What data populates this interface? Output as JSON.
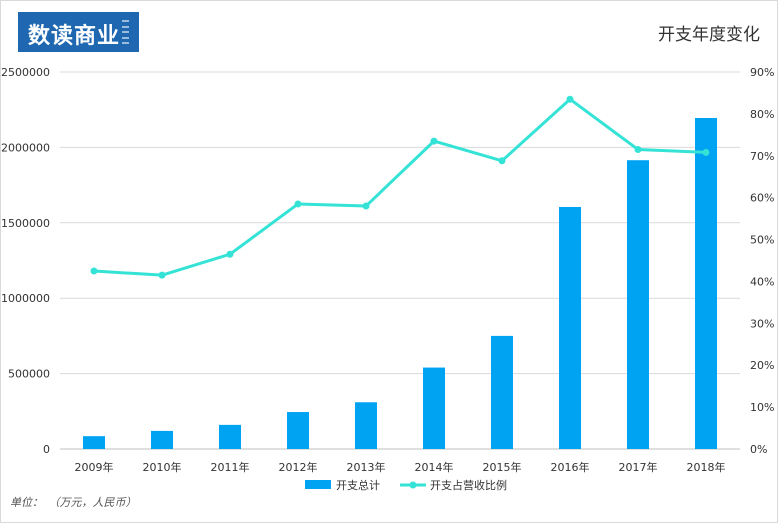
{
  "logo": {
    "text": "数读商业"
  },
  "title": "开支年度变化",
  "unit_note": "单位：　（万元，人民币）",
  "colors": {
    "bar": "#00a2f2",
    "line": "#34e3d6",
    "grid": "#d9d9d9",
    "text": "#333333"
  },
  "chart_data": {
    "type": "bar",
    "title": "开支年度变化",
    "categories": [
      "2009年",
      "2010年",
      "2011年",
      "2012年",
      "2013年",
      "2014年",
      "2015年",
      "2016年",
      "2017年",
      "2018年"
    ],
    "series": [
      {
        "name": "开支总计",
        "type": "bar",
        "axis": "left",
        "values": [
          85000,
          120000,
          160000,
          245000,
          310000,
          540000,
          750000,
          1605000,
          1915000,
          2195000
        ]
      },
      {
        "name": "开支占营收比例",
        "type": "line",
        "axis": "right",
        "values": [
          42.5,
          41.5,
          46.5,
          58.5,
          58.0,
          73.5,
          68.8,
          83.5,
          71.5,
          70.8
        ]
      }
    ],
    "y_left": {
      "min": 0,
      "max": 2500000,
      "ticks": [
        "0",
        "500000",
        "1000000",
        "1500000",
        "2000000",
        "2500000"
      ]
    },
    "y_right": {
      "min": 0,
      "max": 90,
      "ticks": [
        "0%",
        "10%",
        "20%",
        "30%",
        "40%",
        "50%",
        "60%",
        "70%",
        "80%",
        "90%"
      ]
    },
    "grid": true,
    "legend": "bottom"
  }
}
